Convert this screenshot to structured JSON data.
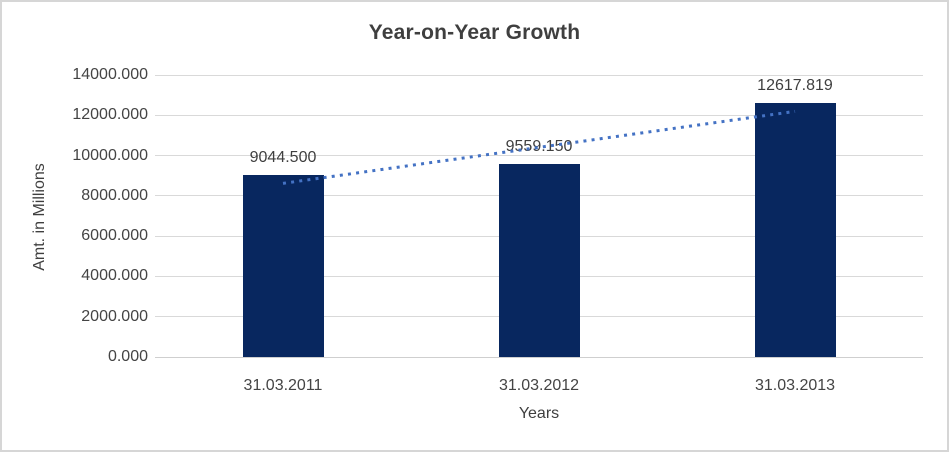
{
  "chart": {
    "colors": {
      "bar": "#08275f",
      "trendline": "#4472c4",
      "gridline": "#d9d9d9",
      "axis_line": "#cfcfcf",
      "border": "#d6d6d6",
      "title_text": "#3f3f3f",
      "tick_text": "#444444"
    }
  },
  "chart_data": {
    "type": "bar",
    "title": "Year-on-Year Growth",
    "xlabel": "Years",
    "ylabel": "Amt. in Millions",
    "categories": [
      "31.03.2011",
      "31.03.2012",
      "31.03.2013"
    ],
    "values": [
      9044.5,
      9559.15,
      12617.819
    ],
    "data_labels": [
      "9044.500",
      "9559.150",
      "12617.819"
    ],
    "ylim": [
      0,
      14000
    ],
    "ytick_step": 2000,
    "ytick_labels": [
      "0.000",
      "2000.000",
      "4000.000",
      "6000.000",
      "8000.000",
      "10000.000",
      "12000.000",
      "14000.000"
    ],
    "grid": true,
    "legend": false,
    "trendline": {
      "type": "linear",
      "style": "dotted"
    }
  }
}
